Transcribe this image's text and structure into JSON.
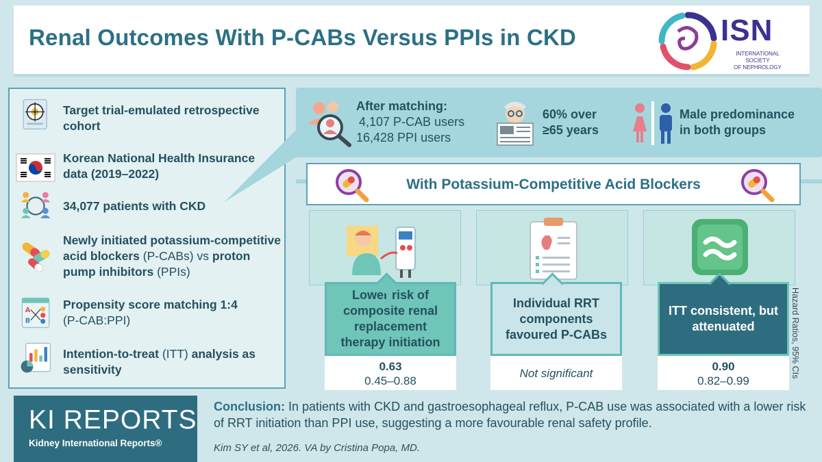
{
  "header": {
    "title": "Renal Outcomes With P-CABs Versus PPIs in CKD",
    "isn_name": "ISN",
    "isn_sub_1": "INTERNATIONAL SOCIETY",
    "isn_sub_2": "OF NEPHROLOGY"
  },
  "methods": {
    "items": [
      {
        "icon": "target-document-icon",
        "bold": "Target trial-emulated retrospective cohort",
        "rest": ""
      },
      {
        "icon": "korea-flag-icon",
        "bold": "Korean National Health Insurance data (2019–2022)",
        "rest": ""
      },
      {
        "icon": "patients-network-icon",
        "bold": "34,077 patients with CKD",
        "rest": ""
      },
      {
        "icon": "capsules-icon",
        "bold_1": "Newly initiated potassium-competitive acid blockers",
        "plain_1": " (P-CABs) ",
        "plain_2": "vs ",
        "bold_2": "proton pump inhibitors",
        "plain_3": " (PPIs)"
      },
      {
        "icon": "matching-chart-icon",
        "bold": "Propensity score matching 1:4",
        "rest": "(P-CAB:PPI)"
      },
      {
        "icon": "bar-chart-icon",
        "bold_1": "Intention-to-treat",
        "plain_1": " (ITT) ",
        "bold_2": "analysis as sensitivity"
      }
    ]
  },
  "matching": {
    "heading": "After matching:",
    "line_1": "4,107 P-CAB users",
    "line_2": "16,428 PPI users",
    "age_1": "60% over",
    "age_2": "≥65 years",
    "sex_1": "Male predominance",
    "sex_2": "in both groups"
  },
  "banner": {
    "text": "With Potassium-Competitive Acid Blockers"
  },
  "outcomes": [
    {
      "label": "Lower risk of composite renal replacement therapy initiation",
      "value": "0.63",
      "ci": "0.45–0.88",
      "bg": "#6fc5b8",
      "text_color": "#24505f"
    },
    {
      "label": "Individual RRT components favoured P-CABs",
      "value": "Not significant",
      "ci": "",
      "bg": "#c9e5ea",
      "text_color": "#24505f"
    },
    {
      "label": "ITT consistent, but attenuated",
      "value": "0.90",
      "ci": "0.82–0.99",
      "bg": "#2e6d80",
      "text_color": "#ffffff"
    }
  ],
  "side_note": "Hazard Ratios, 95% CIs",
  "footer": {
    "ki_big": "KI REPORTS",
    "ki_small": "Kidney International Reports®",
    "conclusion_label": "Conclusion:",
    "conclusion_text": " In patients with CKD and gastroesophageal reflux, P-CAB use was associated with a lower risk of RRT initiation than PPI use, suggesting a more favourable renal safety profile.",
    "credit": "Kim SY et al, 2026. VA by Cristina Popa, MD."
  },
  "colors": {
    "accent": "#2c7085",
    "panel": "#e4f1f3",
    "border": "#5aa3b5",
    "teal": "#6fc5b8"
  }
}
